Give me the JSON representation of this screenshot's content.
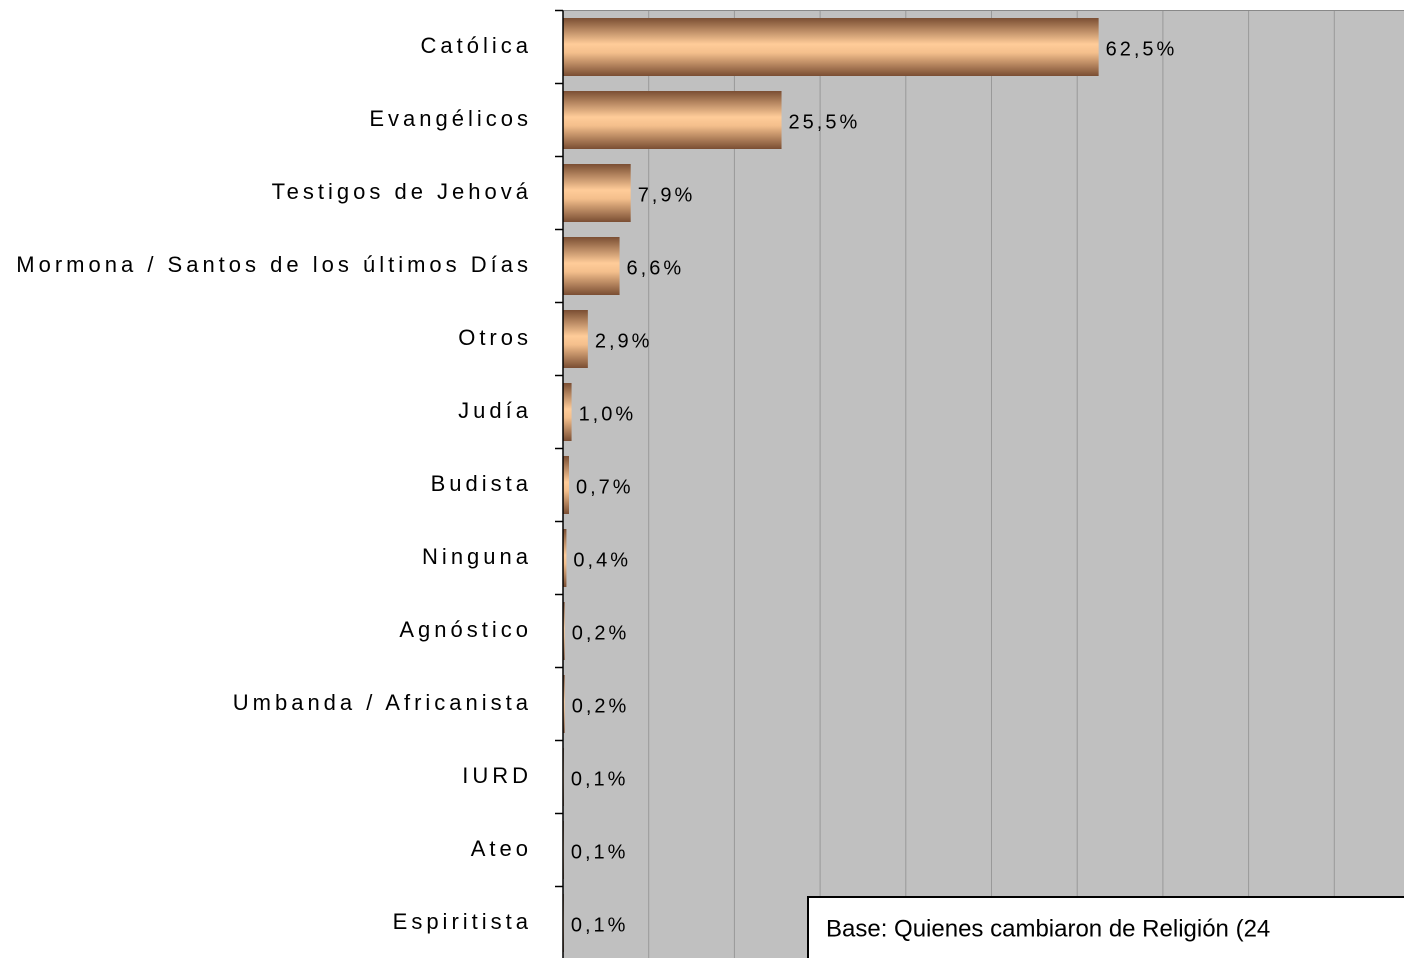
{
  "chart_data": {
    "type": "bar",
    "orientation": "horizontal",
    "categories": [
      "Católica",
      "Evangélicos",
      "Testigos de Jehová",
      "Mormona / Santos de los últimos Días",
      "Otros",
      "Judía",
      "Budista",
      "Ninguna",
      "Agnóstico",
      "Umbanda / Africanista",
      "IURD",
      "Ateo",
      "Espiritista"
    ],
    "values": [
      62.5,
      25.5,
      7.9,
      6.6,
      2.9,
      1.0,
      0.7,
      0.4,
      0.2,
      0.2,
      0.1,
      0.1,
      0.1
    ],
    "value_labels": [
      "62,5%",
      "25,5%",
      "7,9%",
      "6,6%",
      "2,9%",
      "1,0%",
      "0,7%",
      "0,4%",
      "0,2%",
      "0,2%",
      "0,1%",
      "0,1%",
      "0,1%"
    ],
    "color": "#ffcc99",
    "xlim": [
      0,
      100
    ],
    "xticks": [
      0,
      10,
      20,
      30,
      40,
      50,
      60,
      70,
      80,
      90,
      100
    ],
    "grid": true,
    "annotation": "Base: Quienes cambiaron de Religión (24"
  }
}
